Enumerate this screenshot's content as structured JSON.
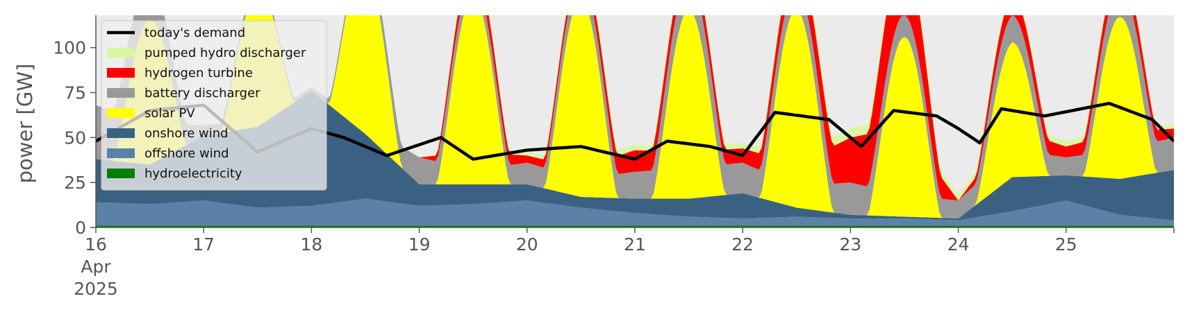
{
  "chart_data": {
    "type": "area",
    "ylabel": "power [GW]",
    "ylim": [
      0,
      118
    ],
    "y_ticks": [
      0,
      25,
      50,
      75,
      100
    ],
    "y_tick_labels": [
      "0",
      "25",
      "50",
      "75",
      "100"
    ],
    "x_domain": [
      16,
      26
    ],
    "x_ticks": [
      16,
      17,
      18,
      19,
      20,
      21,
      22,
      23,
      24,
      25
    ],
    "x_tick_labels": [
      "16",
      "17",
      "18",
      "19",
      "20",
      "21",
      "22",
      "23",
      "24",
      "25"
    ],
    "x_first_tick_extra": [
      "Apr",
      "2025"
    ],
    "x_unit": "day of April 2025",
    "grid": false,
    "background": "#ebebeb",
    "legend_position": "top-left",
    "series": [
      {
        "name": "hydroelectricity",
        "color": "#008000",
        "kind": "area",
        "values": [
          1,
          1,
          1,
          1,
          1,
          1,
          1,
          1,
          1,
          1,
          1,
          1,
          1,
          1,
          1,
          1,
          1,
          1,
          1,
          1,
          1
        ]
      },
      {
        "name": "offshore wind",
        "color": "#5b82a6",
        "kind": "area",
        "values": [
          13,
          12,
          14,
          10,
          11,
          15,
          11,
          12,
          14,
          10,
          7,
          5,
          4,
          5,
          4,
          4,
          3,
          8,
          14,
          6,
          3
        ]
      },
      {
        "name": "onshore wind",
        "color": "#3b6182",
        "kind": "area",
        "values": [
          24,
          22,
          36,
          45,
          64,
          36,
          12,
          11,
          9,
          6,
          8,
          10,
          14,
          5,
          2,
          1,
          1,
          19,
          14,
          20,
          28
        ]
      },
      {
        "name": "solar PV",
        "color": "#ffff00",
        "kind": "area",
        "peaks": [
          [
            16.5,
            80
          ],
          [
            17.5,
            75
          ],
          [
            18.5,
            95
          ],
          [
            19.5,
            105
          ],
          [
            20.5,
            110
          ],
          [
            21.5,
            105
          ],
          [
            22.5,
            110
          ],
          [
            23.5,
            100
          ],
          [
            24.5,
            75
          ],
          [
            25.5,
            90
          ]
        ],
        "width_days": 0.34
      },
      {
        "name": "battery discharger",
        "color": "#999999",
        "kind": "area",
        "values": [
          30,
          22,
          6,
          3,
          2,
          5,
          15,
          8,
          12,
          10,
          15,
          17,
          17,
          12,
          18,
          12,
          10,
          15,
          10,
          16,
          18
        ]
      },
      {
        "name": "hydrogen turbine",
        "color": "#ff0000",
        "kind": "area",
        "values": [
          0,
          0,
          0,
          0,
          0,
          0,
          0,
          10,
          4,
          6,
          12,
          9,
          8,
          12,
          25,
          38,
          0,
          12,
          6,
          10,
          5
        ]
      },
      {
        "name": "pumped hydro discharger",
        "color": "#d9f7a0",
        "kind": "area",
        "values": [
          0,
          0,
          0,
          0,
          0,
          0,
          0,
          3,
          2,
          3,
          3,
          2,
          3,
          4,
          5,
          5,
          3,
          2,
          3,
          3,
          2
        ]
      },
      {
        "name": "today's demand",
        "color": "#000000",
        "kind": "line",
        "values": [
          48,
          65,
          68,
          42,
          55,
          50,
          40,
          50,
          38,
          43,
          45,
          38,
          48,
          45,
          40,
          64,
          60,
          45,
          65,
          62,
          55,
          47,
          66,
          62,
          69,
          60,
          48
        ]
      }
    ],
    "area_x": [
      16,
      16.5,
      17,
      17.5,
      18,
      18.5,
      19,
      19.5,
      20,
      20.5,
      21,
      21.5,
      22,
      22.5,
      23,
      23.5,
      24,
      24.5,
      25,
      25.5,
      26
    ],
    "demand_x": [
      16,
      16.5,
      17,
      17.5,
      18,
      18.3,
      18.7,
      19.2,
      19.5,
      20,
      20.5,
      21,
      21.3,
      21.7,
      22,
      22.3,
      22.8,
      23.1,
      23.4,
      23.8,
      24,
      24.2,
      24.4,
      24.8,
      25.4,
      25.8,
      26
    ],
    "legend_order": [
      "today's demand",
      "pumped hydro discharger",
      "hydrogen turbine",
      "battery discharger",
      "solar PV",
      "onshore wind",
      "offshore wind",
      "hydroelectricity"
    ]
  }
}
